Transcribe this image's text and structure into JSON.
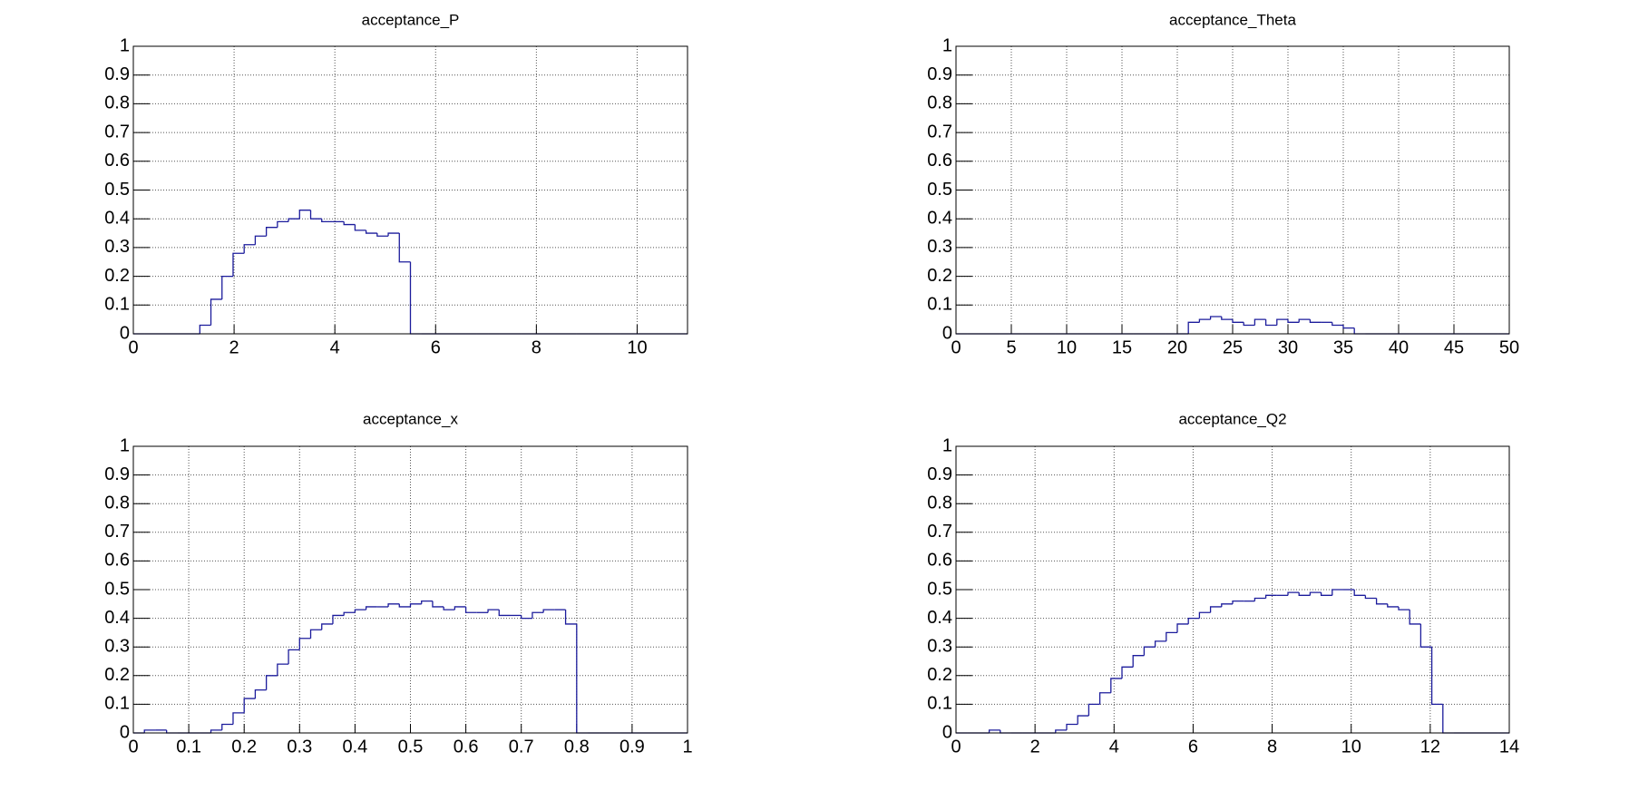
{
  "chart_data": [
    {
      "type": "histogram",
      "title": "acceptance_P",
      "color": "#1c1c9c",
      "grid": true,
      "bins": [
        0,
        0.22,
        0.44,
        0.66,
        0.88,
        1.1,
        1.32,
        1.54,
        1.76,
        1.98,
        2.2,
        2.42,
        2.64,
        2.86,
        3.08,
        3.3,
        3.52,
        3.74,
        3.96,
        4.18,
        4.4,
        4.62,
        4.84,
        5.06,
        5.28,
        5.5,
        5.72,
        5.94,
        6.16,
        6.38,
        6.6,
        6.82,
        7.04,
        7.26,
        7.48,
        7.7,
        7.92,
        8.14,
        8.36,
        8.58,
        8.8,
        9.02,
        9.24,
        9.46,
        9.68,
        9.9,
        10.12,
        10.34,
        10.56,
        10.78,
        11
      ],
      "values": [
        0,
        0,
        0,
        0,
        0,
        0,
        0.03,
        0.12,
        0.2,
        0.28,
        0.31,
        0.34,
        0.37,
        0.39,
        0.4,
        0.43,
        0.4,
        0.39,
        0.39,
        0.38,
        0.36,
        0.35,
        0.34,
        0.35,
        0.25,
        0,
        0,
        0,
        0,
        0,
        0,
        0,
        0,
        0,
        0,
        0,
        0,
        0,
        0,
        0,
        0,
        0,
        0,
        0,
        0,
        0,
        0,
        0,
        0,
        0
      ],
      "xlim": [
        0,
        11
      ],
      "xticks": [
        0,
        2,
        4,
        6,
        8,
        10
      ],
      "ylim": [
        0,
        1
      ],
      "yticks": [
        0,
        0.1,
        0.2,
        0.3,
        0.4,
        0.5,
        0.6,
        0.7,
        0.8,
        0.9,
        1
      ]
    },
    {
      "type": "histogram",
      "title": "acceptance_Theta",
      "color": "#1c1c9c",
      "grid": true,
      "bins": [
        0,
        1,
        2,
        3,
        4,
        5,
        6,
        7,
        8,
        9,
        10,
        11,
        12,
        13,
        14,
        15,
        16,
        17,
        18,
        19,
        20,
        21,
        22,
        23,
        24,
        25,
        26,
        27,
        28,
        29,
        30,
        31,
        32,
        33,
        34,
        35,
        36,
        37,
        38,
        39,
        40,
        41,
        42,
        43,
        44,
        45,
        46,
        47,
        48,
        49,
        50
      ],
      "values": [
        0,
        0,
        0,
        0,
        0,
        0,
        0,
        0,
        0,
        0,
        0,
        0,
        0,
        0,
        0,
        0,
        0,
        0,
        0,
        0,
        0,
        0.04,
        0.05,
        0.06,
        0.05,
        0.04,
        0.03,
        0.05,
        0.03,
        0.05,
        0.04,
        0.05,
        0.04,
        0.04,
        0.03,
        0.02,
        0,
        0,
        0,
        0,
        0,
        0,
        0,
        0,
        0,
        0,
        0,
        0,
        0,
        0
      ],
      "xlim": [
        0,
        50
      ],
      "xticks": [
        0,
        5,
        10,
        15,
        20,
        25,
        30,
        35,
        40,
        45,
        50
      ],
      "ylim": [
        0,
        1
      ],
      "yticks": [
        0,
        0.1,
        0.2,
        0.3,
        0.4,
        0.5,
        0.6,
        0.7,
        0.8,
        0.9,
        1
      ]
    },
    {
      "type": "histogram",
      "title": "acceptance_x",
      "color": "#1c1c9c",
      "grid": true,
      "bins": [
        0,
        0.02,
        0.04,
        0.06,
        0.08,
        0.1,
        0.12,
        0.14,
        0.16,
        0.18,
        0.2,
        0.22,
        0.24,
        0.26,
        0.28,
        0.3,
        0.32,
        0.34,
        0.36,
        0.38,
        0.4,
        0.42,
        0.44,
        0.46,
        0.48,
        0.5,
        0.52,
        0.54,
        0.56,
        0.58,
        0.6,
        0.62,
        0.64,
        0.66,
        0.68,
        0.7,
        0.72,
        0.74,
        0.76,
        0.78,
        0.8,
        0.82,
        0.84,
        0.86,
        0.88,
        0.9,
        0.92,
        0.94,
        0.96,
        0.98,
        1
      ],
      "values": [
        0,
        0.01,
        0.01,
        0,
        0,
        0,
        0,
        0.01,
        0.03,
        0.07,
        0.12,
        0.15,
        0.2,
        0.24,
        0.29,
        0.33,
        0.36,
        0.38,
        0.41,
        0.42,
        0.43,
        0.44,
        0.44,
        0.45,
        0.44,
        0.45,
        0.46,
        0.44,
        0.43,
        0.44,
        0.42,
        0.42,
        0.43,
        0.41,
        0.41,
        0.4,
        0.42,
        0.43,
        0.43,
        0.38,
        0,
        0,
        0,
        0,
        0,
        0,
        0,
        0,
        0,
        0
      ],
      "xlim": [
        0,
        1
      ],
      "xticks": [
        0,
        0.1,
        0.2,
        0.3,
        0.4,
        0.5,
        0.6,
        0.7,
        0.8,
        0.9,
        1
      ],
      "ylim": [
        0,
        1
      ],
      "yticks": [
        0,
        0.1,
        0.2,
        0.3,
        0.4,
        0.5,
        0.6,
        0.7,
        0.8,
        0.9,
        1
      ]
    },
    {
      "type": "histogram",
      "title": "acceptance_Q2",
      "color": "#1c1c9c",
      "grid": true,
      "bins": [
        0,
        0.28,
        0.56,
        0.84,
        1.12,
        1.4,
        1.68,
        1.96,
        2.24,
        2.52,
        2.8,
        3.08,
        3.36,
        3.64,
        3.92,
        4.2,
        4.48,
        4.76,
        5.04,
        5.32,
        5.6,
        5.88,
        6.16,
        6.44,
        6.72,
        7,
        7.28,
        7.56,
        7.84,
        8.12,
        8.4,
        8.68,
        8.96,
        9.24,
        9.52,
        9.8,
        10.08,
        10.36,
        10.64,
        10.92,
        11.2,
        11.48,
        11.76,
        12.04,
        12.32,
        12.6,
        12.88,
        13.16,
        13.44,
        13.72,
        14
      ],
      "values": [
        0,
        0,
        0,
        0.01,
        0,
        0,
        0,
        0,
        0,
        0.01,
        0.03,
        0.06,
        0.1,
        0.14,
        0.19,
        0.23,
        0.27,
        0.3,
        0.32,
        0.35,
        0.38,
        0.4,
        0.42,
        0.44,
        0.45,
        0.46,
        0.46,
        0.47,
        0.48,
        0.48,
        0.49,
        0.48,
        0.49,
        0.48,
        0.5,
        0.5,
        0.48,
        0.47,
        0.45,
        0.44,
        0.43,
        0.38,
        0.3,
        0.1,
        0,
        0,
        0,
        0,
        0,
        0
      ],
      "xlim": [
        0,
        14
      ],
      "xticks": [
        0,
        2,
        4,
        6,
        8,
        10,
        12,
        14
      ],
      "ylim": [
        0,
        1
      ],
      "yticks": [
        0,
        0.1,
        0.2,
        0.3,
        0.4,
        0.5,
        0.6,
        0.7,
        0.8,
        0.9,
        1
      ]
    }
  ]
}
